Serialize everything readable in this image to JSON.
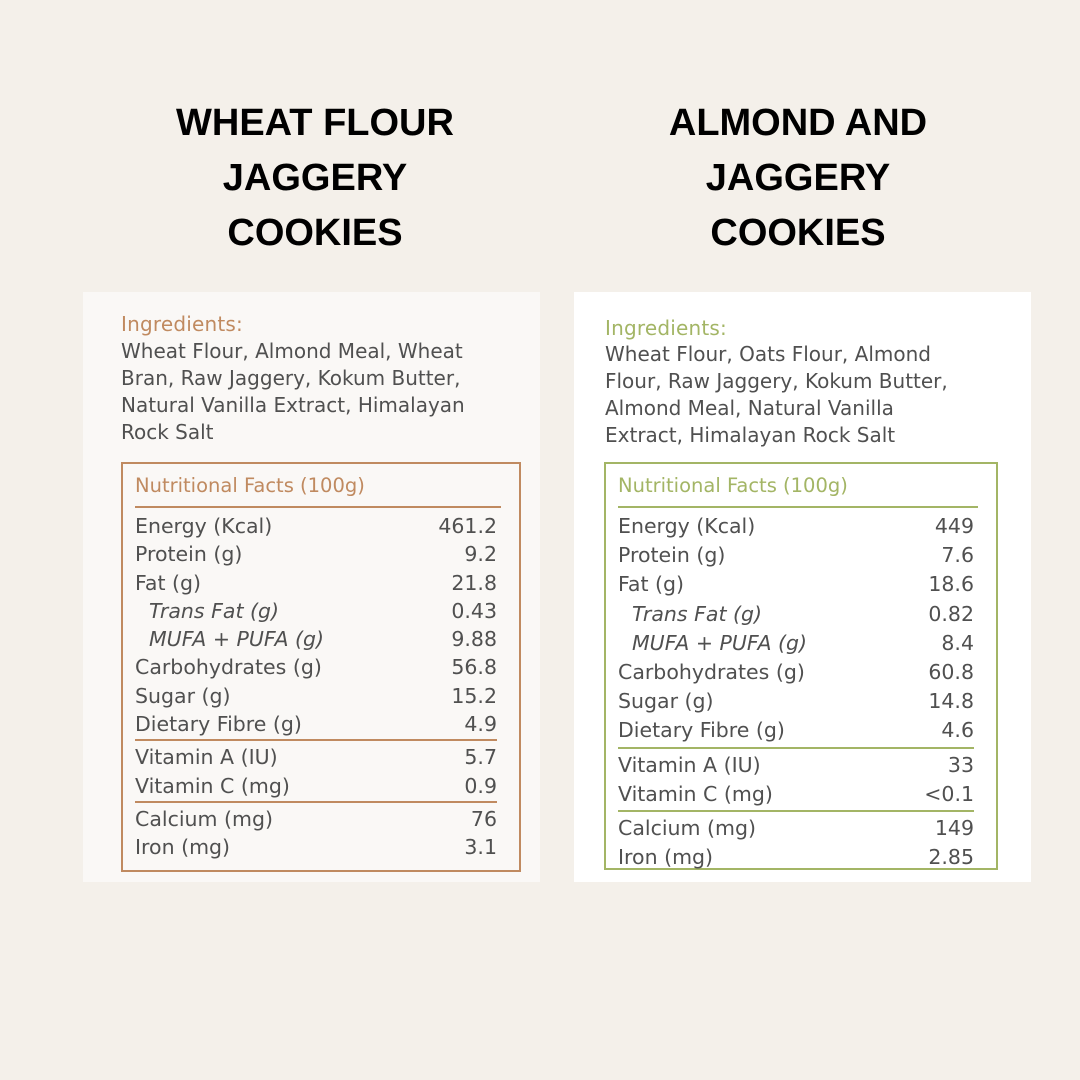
{
  "panels": [
    {
      "title_lines": [
        "WHEAT FLOUR",
        "JAGGERY",
        "COOKIES"
      ],
      "accent": "#c08a60",
      "card_bg": "#faf8f6",
      "ingredients_label": "Ingredients:",
      "ingredients_text": "Wheat Flour,  Almond Meal, Wheat\nBran, Raw Jaggery, Kokum Butter,\nNatural Vanilla Extract, Himalayan\nRock Salt",
      "facts_title": "Nutritional Facts (100g)",
      "sections": [
        [
          {
            "label": "Energy (Kcal)",
            "value": "461.2"
          },
          {
            "label": "Protein (g)",
            "value": "9.2"
          },
          {
            "label": "Fat (g)",
            "value": "21.8"
          },
          {
            "label": "Trans Fat (g)",
            "value": "0.43",
            "sub": true
          },
          {
            "label": "MUFA + PUFA (g)",
            "value": "9.88",
            "sub": true
          },
          {
            "label": "Carbohydrates (g)",
            "value": "56.8"
          },
          {
            "label": "Sugar (g)",
            "value": "15.2"
          },
          {
            "label": "Dietary Fibre (g)",
            "value": "4.9"
          }
        ],
        [
          {
            "label": "Vitamin A (IU)",
            "value": "5.7"
          },
          {
            "label": "Vitamin C (mg)",
            "value": "0.9"
          }
        ],
        [
          {
            "label": "Calcium (mg)",
            "value": "76"
          },
          {
            "label": "Iron (mg)",
            "value": "3.1"
          }
        ]
      ]
    },
    {
      "title_lines": [
        "ALMOND AND",
        "JAGGERY",
        "COOKIES"
      ],
      "accent": "#a3b565",
      "card_bg": "#ffffff",
      "ingredients_label": "Ingredients:",
      "ingredients_text": "Wheat Flour, Oats Flour, Almond\nFlour, Raw Jaggery, Kokum Butter,\nAlmond Meal, Natural Vanilla\nExtract, Himalayan Rock Salt",
      "facts_title": "Nutritional Facts (100g)",
      "sections": [
        [
          {
            "label": "Energy (Kcal)",
            "value": "449"
          },
          {
            "label": "Protein (g)",
            "value": "7.6"
          },
          {
            "label": "Fat (g)",
            "value": "18.6"
          },
          {
            "label": "Trans Fat (g)",
            "value": "0.82",
            "sub": true
          },
          {
            "label": "MUFA + PUFA (g)",
            "value": "8.4",
            "sub": true
          },
          {
            "label": "Carbohydrates (g)",
            "value": "60.8"
          },
          {
            "label": "Sugar (g)",
            "value": "14.8"
          },
          {
            "label": "Dietary Fibre (g)",
            "value": "4.6"
          }
        ],
        [
          {
            "label": "Vitamin A (IU)",
            "value": "33"
          },
          {
            "label": "Vitamin C (mg)",
            "value": "<0.1"
          }
        ],
        [
          {
            "label": "Calcium (mg)",
            "value": "149"
          },
          {
            "label": "Iron (mg)",
            "value": "2.85"
          }
        ]
      ]
    }
  ]
}
